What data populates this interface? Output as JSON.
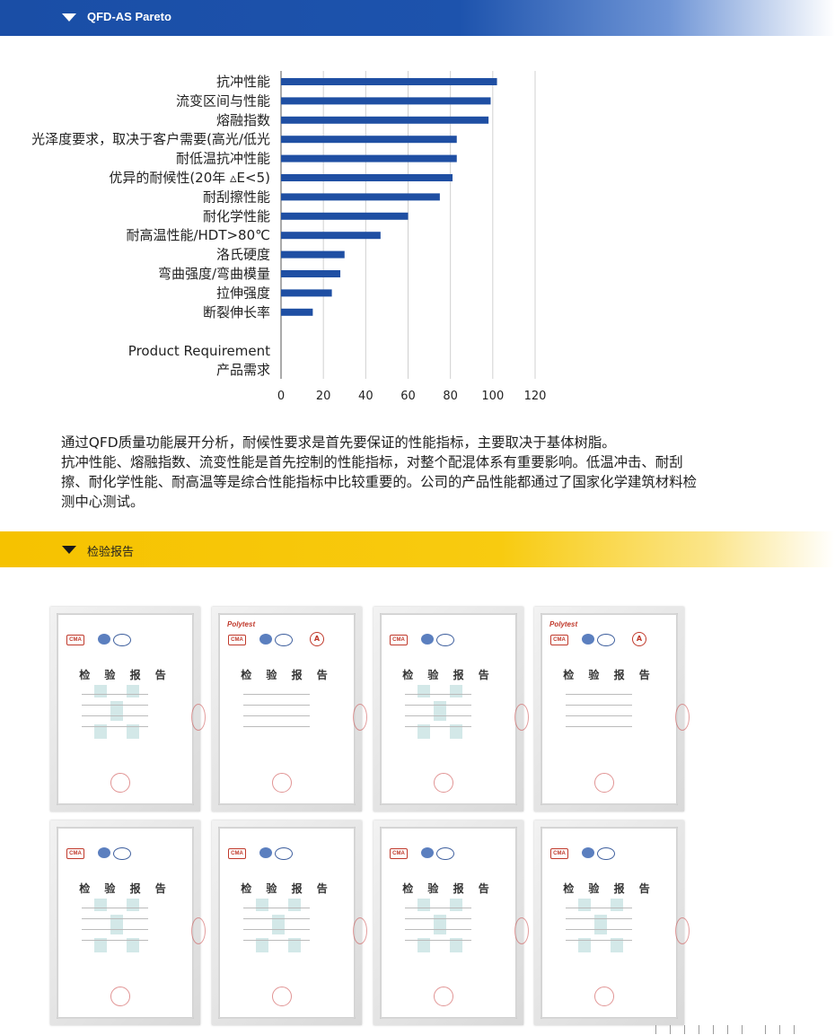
{
  "header": {
    "title": "QFD-AS Pareto"
  },
  "chart_data": {
    "type": "bar",
    "orientation": "horizontal",
    "categories": [
      "抗冲性能",
      "流变区间与性能",
      "熔融指数",
      "光泽度要求，取决于客户需要(高光/低光",
      "耐低温抗冲性能",
      "优异的耐候性(20年 ▵E<5)",
      "耐刮擦性能",
      "耐化学性能",
      "耐高温性能/HDT>80℃",
      "洛氏硬度",
      "弯曲强度/弯曲模量",
      "拉伸强度",
      "断裂伸长率"
    ],
    "values": [
      102,
      99,
      98,
      83,
      83,
      81,
      75,
      60,
      47,
      30,
      28,
      24,
      15
    ],
    "axis_title_lines": [
      "Product Requirement",
      "产品需求"
    ],
    "x_ticks": [
      "0",
      "20",
      "40",
      "60",
      "80",
      "100",
      "120"
    ],
    "xlim": [
      0,
      120
    ],
    "grid": "vertical",
    "bar_color": "#1f4fa3"
  },
  "description": {
    "lines": [
      "通过QFD质量功能展开分析，耐候性要求是首先要保证的性能指标，主要取决于基体树脂。",
      "抗冲性能、熔融指数、流变性能是首先控制的性能指标，对整个配混体系有重要影响。低温冲击、耐刮",
      "擦、耐化学性能、耐高温等是综合性能指标中比较重要的。公司的产品性能都通过了国家化学建筑材料检",
      "测中心测试。"
    ]
  },
  "section2": {
    "title": "检验报告"
  },
  "certificates": [
    {
      "heading": "检 验 报 告",
      "brand": ""
    },
    {
      "heading": "检 验 报 告",
      "brand": "Polytest"
    },
    {
      "heading": "检 验 报 告",
      "brand": ""
    },
    {
      "heading": "检 验 报 告",
      "brand": "Polytest"
    },
    {
      "heading": "检 验 报 告",
      "brand": ""
    },
    {
      "heading": "检 验 报 告",
      "brand": ""
    },
    {
      "heading": "检 验 报 告",
      "brand": ""
    },
    {
      "heading": "检 验 报 告",
      "brand": ""
    }
  ]
}
